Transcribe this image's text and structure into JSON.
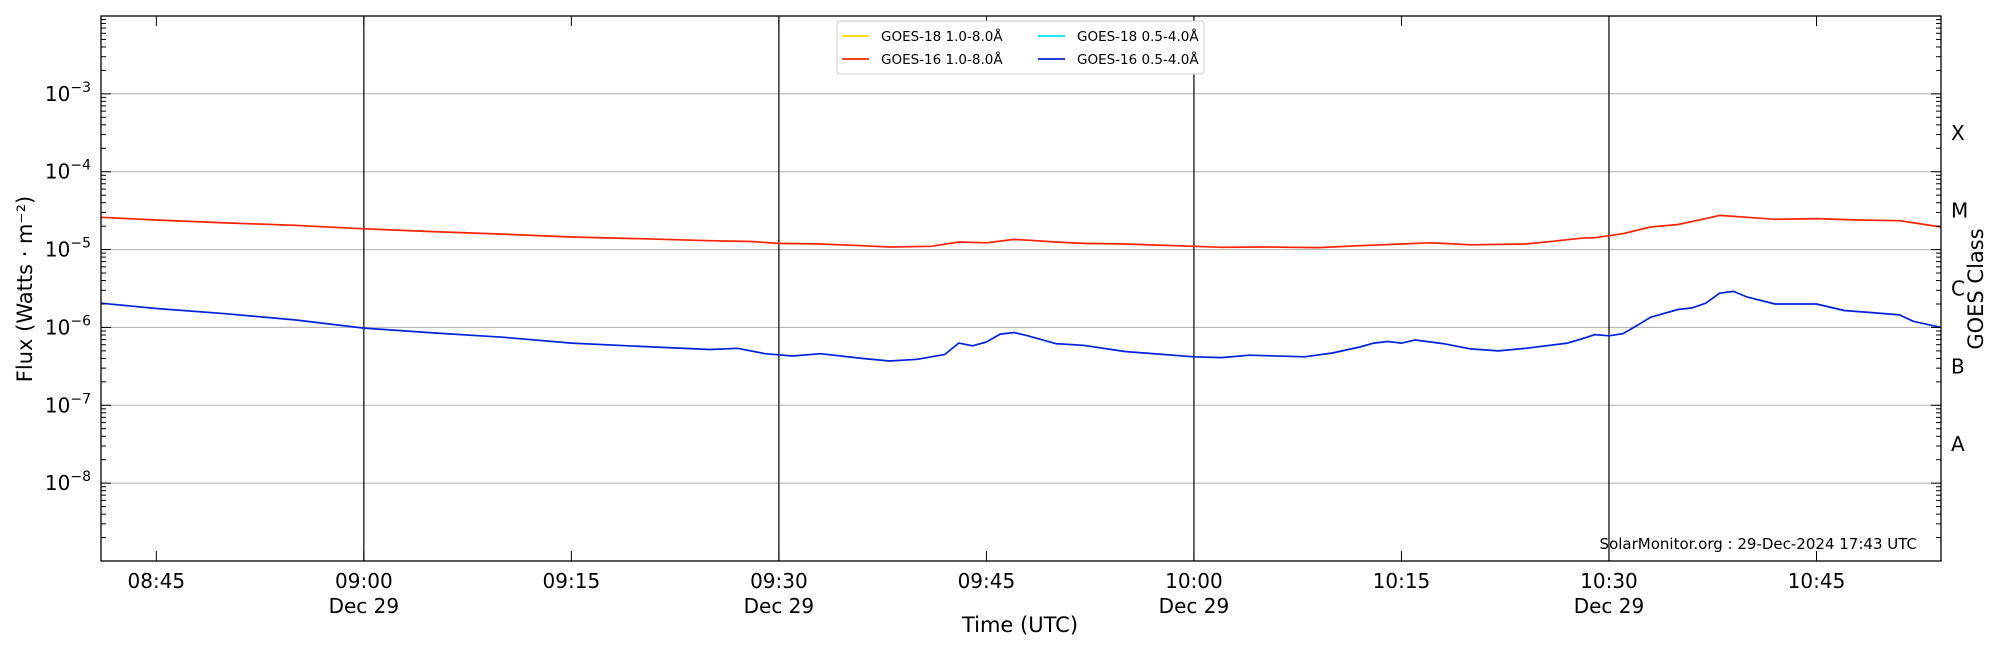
{
  "chart_data": {
    "type": "line",
    "xlabel": "Time (UTC)",
    "ylabel": "Flux (Watts · m⁻²)",
    "y2label": "GOES Class",
    "yscale": "log",
    "ylim": [
      1e-09,
      0.01
    ],
    "x_range": [
      "2024-12-29 08:41",
      "2024-12-29 10:54"
    ],
    "x_ticks": [
      {
        "t": "08:45",
        "label": "08:45",
        "date": ""
      },
      {
        "t": "09:00",
        "label": "09:00",
        "date": "Dec 29"
      },
      {
        "t": "09:15",
        "label": "09:15",
        "date": ""
      },
      {
        "t": "09:30",
        "label": "09:30",
        "date": "Dec 29"
      },
      {
        "t": "09:45",
        "label": "09:45",
        "date": ""
      },
      {
        "t": "10:00",
        "label": "10:00",
        "date": "Dec 29"
      },
      {
        "t": "10:15",
        "label": "10:15",
        "date": ""
      },
      {
        "t": "10:30",
        "label": "10:30",
        "date": "Dec 29"
      },
      {
        "t": "10:45",
        "label": "10:45",
        "date": ""
      }
    ],
    "y_ticks": [
      {
        "value": 0.001,
        "exp": "−3"
      },
      {
        "value": 0.0001,
        "exp": "−4"
      },
      {
        "value": 1e-05,
        "exp": "−5"
      },
      {
        "value": 1e-06,
        "exp": "−6"
      },
      {
        "value": 1e-07,
        "exp": "−7"
      },
      {
        "value": 1e-08,
        "exp": "−8"
      }
    ],
    "goes_classes": [
      {
        "label": "X",
        "value": 0.000316
      },
      {
        "label": "M",
        "value": 3.16e-05
      },
      {
        "label": "C",
        "value": 3.16e-06
      },
      {
        "label": "B",
        "value": 3.16e-07
      },
      {
        "label": "A",
        "value": 3.16e-08
      }
    ],
    "grid": "horizontal at decades; vertical lines at dated ticks",
    "legend_position": "top-center",
    "legend": [
      {
        "name": "GOES-18 1.0-8.0Å",
        "color": "#ffd700"
      },
      {
        "name": "GOES-18 0.5-4.0Å",
        "color": "#00e5ee"
      },
      {
        "name": "GOES-16 1.0-8.0Å",
        "color": "#ff2200"
      },
      {
        "name": "GOES-16 0.5-4.0Å",
        "color": "#0022dd"
      }
    ],
    "series": [
      {
        "name": "GOES-16 1.0-8.0Å",
        "color": "#ff2200",
        "x": [
          "08:41",
          "08:45",
          "08:50",
          "08:55",
          "09:00",
          "09:05",
          "09:10",
          "09:15",
          "09:20",
          "09:25",
          "09:28",
          "09:30",
          "09:33",
          "09:36",
          "09:38",
          "09:41",
          "09:43",
          "09:45",
          "09:47",
          "09:48",
          "09:50",
          "09:52",
          "09:55",
          "10:00",
          "10:02",
          "10:05",
          "10:09",
          "10:12",
          "10:15",
          "10:17",
          "10:18",
          "10:20",
          "10:24",
          "10:26",
          "10:28",
          "10:29",
          "10:31",
          "10:33",
          "10:35",
          "10:37",
          "10:38",
          "10:40",
          "10:42",
          "10:45",
          "10:48",
          "10:51",
          "10:54"
        ],
        "y": [
          2.6e-05,
          2.4e-05,
          2.2e-05,
          2.05e-05,
          1.85e-05,
          1.7e-05,
          1.58e-05,
          1.45e-05,
          1.38e-05,
          1.3e-05,
          1.27e-05,
          1.2e-05,
          1.18e-05,
          1.12e-05,
          1.08e-05,
          1.1e-05,
          1.25e-05,
          1.22e-05,
          1.35e-05,
          1.32e-05,
          1.25e-05,
          1.2e-05,
          1.18e-05,
          1.1e-05,
          1.07e-05,
          1.08e-05,
          1.06e-05,
          1.12e-05,
          1.18e-05,
          1.22e-05,
          1.2e-05,
          1.15e-05,
          1.18e-05,
          1.28e-05,
          1.4e-05,
          1.42e-05,
          1.6e-05,
          1.95e-05,
          2.1e-05,
          2.5e-05,
          2.75e-05,
          2.6e-05,
          2.45e-05,
          2.5e-05,
          2.4e-05,
          2.35e-05,
          1.95e-05
        ]
      },
      {
        "name": "GOES-16 0.5-4.0Å",
        "color": "#0022dd",
        "x": [
          "08:41",
          "08:45",
          "08:50",
          "08:55",
          "09:00",
          "09:05",
          "09:10",
          "09:15",
          "09:20",
          "09:25",
          "09:27",
          "09:29",
          "09:31",
          "09:33",
          "09:36",
          "09:38",
          "09:40",
          "09:42",
          "09:43",
          "09:44",
          "09:45",
          "09:46",
          "09:47",
          "09:48",
          "09:50",
          "09:52",
          "09:55",
          "10:00",
          "10:02",
          "10:04",
          "10:08",
          "10:10",
          "10:12",
          "10:13",
          "10:14",
          "10:15",
          "10:16",
          "10:18",
          "10:20",
          "10:22",
          "10:24",
          "10:27",
          "10:28",
          "10:29",
          "10:30",
          "10:31",
          "10:32",
          "10:33",
          "10:35",
          "10:36",
          "10:37",
          "10:38",
          "10:39",
          "10:40",
          "10:42",
          "10:45",
          "10:47",
          "10:49",
          "10:51",
          "10:52",
          "10:54"
        ],
        "y": [
          2.05e-06,
          1.75e-06,
          1.5e-06,
          1.25e-06,
          9.8e-07,
          8.5e-07,
          7.5e-07,
          6.3e-07,
          5.7e-07,
          5.2e-07,
          5.4e-07,
          4.6e-07,
          4.3e-07,
          4.6e-07,
          4e-07,
          3.7e-07,
          3.9e-07,
          4.5e-07,
          6.3e-07,
          5.8e-07,
          6.5e-07,
          8.2e-07,
          8.6e-07,
          7.8e-07,
          6.2e-07,
          5.9e-07,
          4.9e-07,
          4.2e-07,
          4.1e-07,
          4.4e-07,
          4.2e-07,
          4.7e-07,
          5.6e-07,
          6.3e-07,
          6.6e-07,
          6.3e-07,
          6.9e-07,
          6.2e-07,
          5.3e-07,
          5e-07,
          5.4e-07,
          6.3e-07,
          7.1e-07,
          8.1e-07,
          7.8e-07,
          8.3e-07,
          1.05e-06,
          1.35e-06,
          1.7e-06,
          1.78e-06,
          2.05e-06,
          2.75e-06,
          2.9e-06,
          2.45e-06,
          2e-06,
          2e-06,
          1.65e-06,
          1.55e-06,
          1.45e-06,
          1.2e-06,
          1e-06
        ]
      }
    ],
    "annotation": "SolarMonitor.org : 29-Dec-2024 17:43 UTC"
  }
}
